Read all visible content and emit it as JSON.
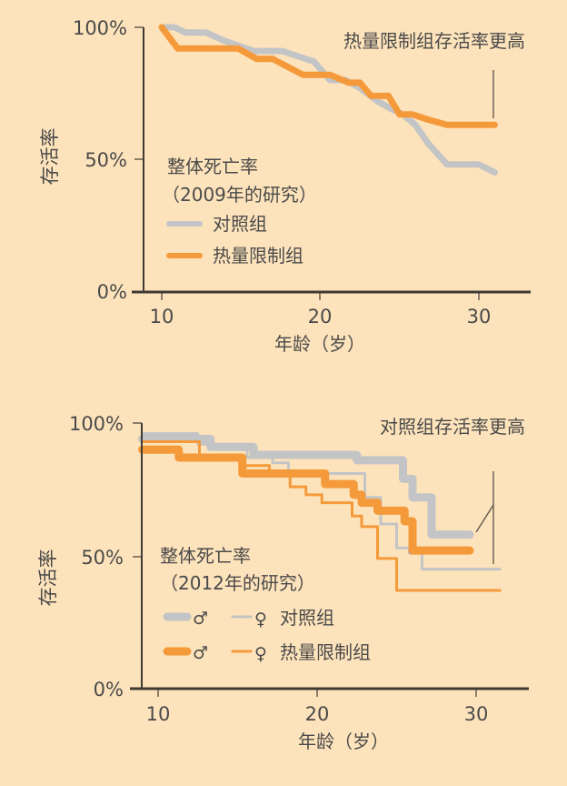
{
  "colors": {
    "background": "#fde3bb",
    "control": "#c3c4c6",
    "calorie_restriction": "#f59a3a",
    "axis": "#3f3a33",
    "text": "#4a4a4a"
  },
  "chart_data": [
    {
      "type": "line",
      "title": "热量限制组存活率更高",
      "legend_title": "整体死亡率",
      "legend_subtitle": "（2009年的研究）",
      "xlabel": "年龄（岁）",
      "ylabel": "存活率",
      "xticks": [
        "10",
        "20",
        "30"
      ],
      "yticks": [
        "100%",
        "50%",
        "0%"
      ],
      "xlim": [
        9,
        33
      ],
      "ylim": [
        0,
        100
      ],
      "grid": false,
      "legend_position": "inside-left",
      "series": [
        {
          "name": "对照组",
          "style": "thick",
          "color": "#c3c4c6",
          "x": [
            10,
            10.8,
            11.5,
            12.8,
            13.9,
            15.8,
            17.6,
            19.6,
            20.6,
            21.6,
            22.5,
            23.6,
            24.5,
            25.2,
            26.0,
            26.8,
            28.0,
            29.0,
            30.0,
            31.0
          ],
          "y": [
            100,
            100,
            98,
            98,
            95,
            91,
            91,
            87,
            80,
            80,
            77,
            72,
            69,
            67,
            63,
            56,
            48,
            48,
            48,
            45
          ]
        },
        {
          "name": "热量限制组",
          "style": "thick",
          "color": "#f59a3a",
          "x": [
            10,
            11.0,
            14.8,
            16.0,
            17.0,
            18.9,
            20.6,
            21.8,
            22.5,
            23.2,
            24.3,
            25.0,
            25.8,
            26.8,
            28.0,
            31.0
          ],
          "y": [
            100,
            92,
            92,
            88,
            88,
            82,
            82,
            79,
            79,
            74,
            74,
            67,
            67,
            65,
            63,
            63
          ]
        }
      ],
      "annotation": {
        "text": "热量限制组存活率更高",
        "points_to_age": 31
      }
    },
    {
      "type": "line",
      "title": "对照组存活率更高",
      "legend_title": "整体死亡率",
      "legend_subtitle": "（2012年的研究）",
      "xlabel": "年龄（岁）",
      "ylabel": "存活率",
      "xticks": [
        "10",
        "20",
        "30"
      ],
      "yticks": [
        "100%",
        "50%",
        "0%"
      ],
      "xlim": [
        9,
        33
      ],
      "ylim": [
        0,
        100
      ],
      "grid": false,
      "legend_position": "inside-left",
      "series": [
        {
          "name": "对照组 ♂",
          "style": "thick-step",
          "color": "#c3c4c6",
          "x": [
            9,
            12.0,
            13.3,
            14.8,
            16.0,
            20.8,
            22.5,
            24.8,
            25.4,
            26.0,
            27.2,
            29.6
          ],
          "y": [
            94,
            94,
            91,
            91,
            88,
            88,
            86,
            86,
            79,
            72,
            58,
            58
          ]
        },
        {
          "name": "对照组 ♀",
          "style": "thin-step",
          "color": "#c3c4c6",
          "x": [
            9,
            12.0,
            12.5,
            14.5,
            15.6,
            17.2,
            18.2,
            22.4,
            23.0,
            24.0,
            25.0,
            25.8,
            26.6,
            31.5
          ],
          "y": [
            96,
            96,
            92,
            92,
            87,
            85,
            81,
            81,
            72,
            62,
            53,
            51,
            45,
            45
          ]
        },
        {
          "name": "热量限制组 ♂",
          "style": "thick-step",
          "color": "#f59a3a",
          "x": [
            9,
            11.3,
            13.8,
            15.3,
            16.0,
            20.5,
            21.5,
            22.3,
            22.8,
            23.8,
            25.5,
            26.0,
            29.6
          ],
          "y": [
            90,
            87,
            87,
            81,
            81,
            77,
            77,
            73,
            70,
            67,
            63,
            52,
            52
          ]
        },
        {
          "name": "热量限制组 ♀",
          "style": "thin-step",
          "color": "#f59a3a",
          "x": [
            9,
            10.8,
            12.0,
            12.6,
            13.6,
            15.2,
            17.0,
            18.3,
            19.3,
            20.3,
            21.8,
            22.2,
            22.8,
            23.8,
            25.0,
            31.5
          ],
          "y": [
            93,
            93,
            93,
            88,
            88,
            84,
            80,
            76,
            73,
            70,
            70,
            65,
            61,
            49,
            37,
            37
          ]
        }
      ],
      "annotation": {
        "text": "对照组存活率更高",
        "points_to_age": 31
      }
    }
  ],
  "top_chart": {
    "title": "热量限制组存活率更高",
    "ylabel": "存活率",
    "xlabel": "年龄（岁）",
    "yticks": [
      "100%",
      "50%",
      "0%"
    ],
    "xticks": [
      "10",
      "20",
      "30"
    ],
    "legend": {
      "title": "整体死亡率",
      "subtitle": "（2009年的研究）",
      "items": [
        {
          "label": "对照组"
        },
        {
          "label": "热量限制组"
        }
      ]
    }
  },
  "bottom_chart": {
    "title": "对照组存活率更高",
    "ylabel": "存活率",
    "xlabel": "年龄（岁）",
    "yticks": [
      "100%",
      "50%",
      "0%"
    ],
    "xticks": [
      "10",
      "20",
      "30"
    ],
    "legend": {
      "title": "整体死亡率",
      "subtitle": "（2012年的研究）",
      "male_symbol": "♂",
      "female_symbol": "♀",
      "items": [
        {
          "label": "对照组"
        },
        {
          "label": "热量限制组"
        }
      ]
    }
  }
}
